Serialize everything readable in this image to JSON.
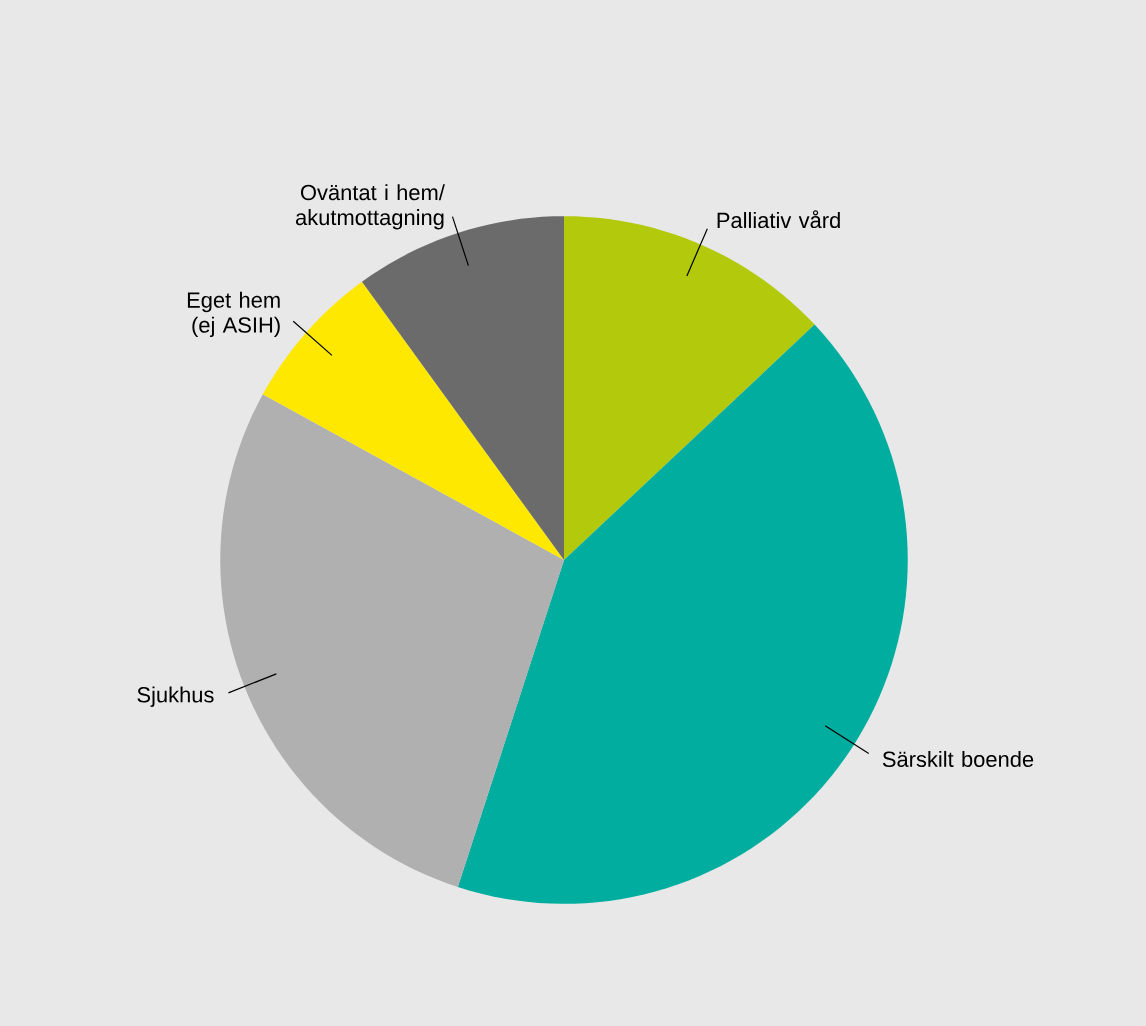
{
  "chart_data": {
    "type": "pie",
    "categories": [
      "Palliativ vård",
      "Särskilt boende",
      "Sjukhus",
      "Eget hem (ej ASIH)",
      "Oväntat i hem/ akutmottagning"
    ],
    "values": [
      13,
      42,
      28,
      7,
      10
    ],
    "colors": [
      "#b2c90c",
      "#00ad9f",
      "#b0b0b0",
      "#ffe800",
      "#6b6b6b"
    ]
  }
}
